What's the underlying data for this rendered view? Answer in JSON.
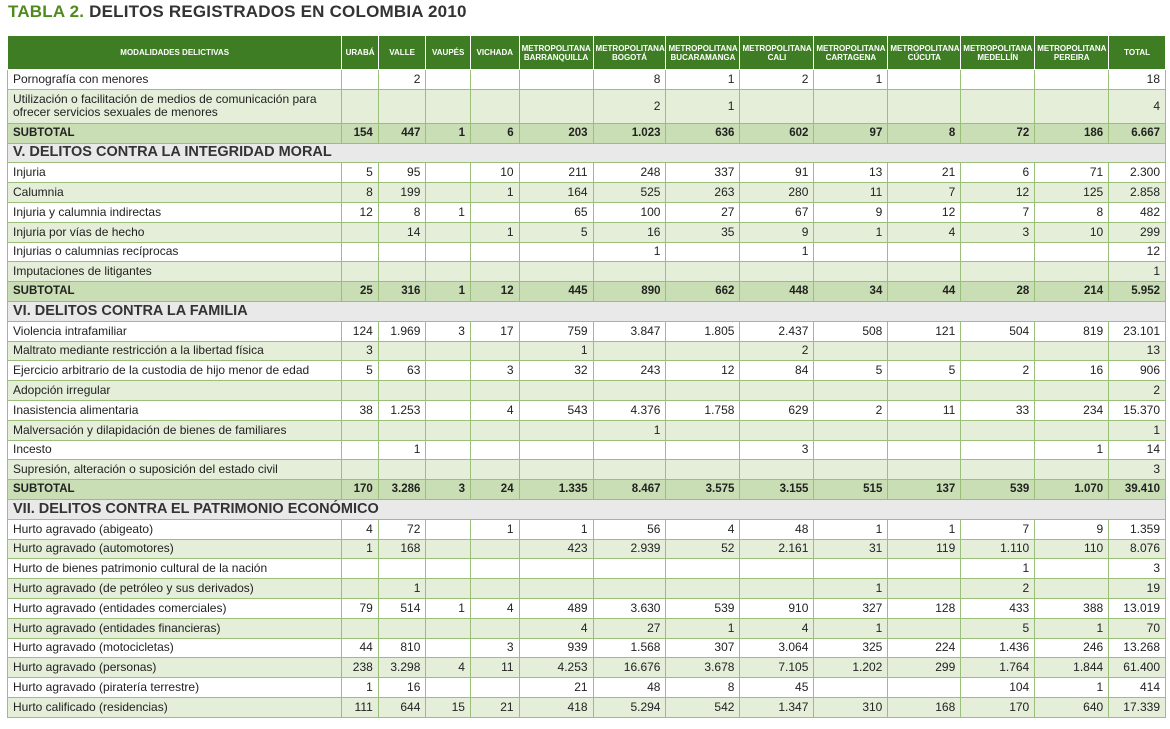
{
  "title": {
    "prefix": "TABLA 2.",
    "text": "DELITOS REGISTRADOS EN COLOMBIA 2010"
  },
  "columns": [
    "MODALIDADES DELICTIVAS",
    "URABÁ",
    "VALLE",
    "VAUPÉS",
    "VICHADA",
    "METROPOLITANA BARRANQUILLA",
    "METROPOLITANA BOGOTÁ",
    "METROPOLITANA BUCARAMANGA",
    "METROPOLITANA CALI",
    "METROPOLITANA CARTAGENA",
    "METROPOLITANA CÚCUTA",
    "METROPOLITANA MEDELLÍN",
    "METROPOLITANA PEREIRA",
    "TOTAL"
  ],
  "rows": [
    {
      "type": "data",
      "cells": [
        "Pornografía con menores",
        "",
        "2",
        "",
        "",
        "",
        "8",
        "1",
        "2",
        "1",
        "",
        "",
        "",
        "18"
      ]
    },
    {
      "type": "data",
      "tall": true,
      "cells": [
        "Utilización o facilitación de medios de comunicación para ofrecer servicios sexuales de menores",
        "",
        "",
        "",
        "",
        "",
        "2",
        "1",
        "",
        "",
        "",
        "",
        "",
        "4"
      ]
    },
    {
      "type": "subtotal",
      "cells": [
        "SUBTOTAL",
        "154",
        "447",
        "1",
        "6",
        "203",
        "1.023",
        "636",
        "602",
        "97",
        "8",
        "72",
        "186",
        "6.667"
      ]
    },
    {
      "type": "section",
      "label": "V. DELITOS CONTRA LA INTEGRIDAD MORAL"
    },
    {
      "type": "data",
      "cells": [
        "Injuria",
        "5",
        "95",
        "",
        "10",
        "211",
        "248",
        "337",
        "91",
        "13",
        "21",
        "6",
        "71",
        "2.300"
      ]
    },
    {
      "type": "data",
      "cells": [
        "Calumnia",
        "8",
        "199",
        "",
        "1",
        "164",
        "525",
        "263",
        "280",
        "11",
        "7",
        "12",
        "125",
        "2.858"
      ]
    },
    {
      "type": "data",
      "cells": [
        "Injuria y calumnia indirectas",
        "12",
        "8",
        "1",
        "",
        "65",
        "100",
        "27",
        "67",
        "9",
        "12",
        "7",
        "8",
        "482"
      ]
    },
    {
      "type": "data",
      "cells": [
        "Injuria por vías de hecho",
        "",
        "14",
        "",
        "1",
        "5",
        "16",
        "35",
        "9",
        "1",
        "4",
        "3",
        "10",
        "299"
      ]
    },
    {
      "type": "data",
      "cells": [
        "Injurias o calumnias recíprocas",
        "",
        "",
        "",
        "",
        "",
        "1",
        "",
        "1",
        "",
        "",
        "",
        "",
        "12"
      ]
    },
    {
      "type": "data",
      "cells": [
        "Imputaciones de litigantes",
        "",
        "",
        "",
        "",
        "",
        "",
        "",
        "",
        "",
        "",
        "",
        "",
        "1"
      ]
    },
    {
      "type": "subtotal",
      "cells": [
        "SUBTOTAL",
        "25",
        "316",
        "1",
        "12",
        "445",
        "890",
        "662",
        "448",
        "34",
        "44",
        "28",
        "214",
        "5.952"
      ]
    },
    {
      "type": "section",
      "label": "VI. DELITOS CONTRA LA FAMILIA"
    },
    {
      "type": "data",
      "cells": [
        "Violencia intrafamiliar",
        "124",
        "1.969",
        "3",
        "17",
        "759",
        "3.847",
        "1.805",
        "2.437",
        "508",
        "121",
        "504",
        "819",
        "23.101"
      ]
    },
    {
      "type": "data",
      "cells": [
        "Maltrato mediante restricción a la libertad física",
        "3",
        "",
        "",
        "",
        "1",
        "",
        "",
        "2",
        "",
        "",
        "",
        "",
        "13"
      ]
    },
    {
      "type": "data",
      "cells": [
        "Ejercicio arbitrario de la custodia de hijo menor de edad",
        "5",
        "63",
        "",
        "3",
        "32",
        "243",
        "12",
        "84",
        "5",
        "5",
        "2",
        "16",
        "906"
      ]
    },
    {
      "type": "data",
      "cells": [
        "Adopción irregular",
        "",
        "",
        "",
        "",
        "",
        "",
        "",
        "",
        "",
        "",
        "",
        "",
        "2"
      ]
    },
    {
      "type": "data",
      "cells": [
        "Inasistencia alimentaria",
        "38",
        "1.253",
        "",
        "4",
        "543",
        "4.376",
        "1.758",
        "629",
        "2",
        "11",
        "33",
        "234",
        "15.370"
      ]
    },
    {
      "type": "data",
      "cells": [
        "Malversación y dilapidación de bienes de familiares",
        "",
        "",
        "",
        "",
        "",
        "1",
        "",
        "",
        "",
        "",
        "",
        "",
        "1"
      ]
    },
    {
      "type": "data",
      "cells": [
        "Incesto",
        "",
        "1",
        "",
        "",
        "",
        "",
        "",
        "3",
        "",
        "",
        "",
        "1",
        "14"
      ]
    },
    {
      "type": "data",
      "cells": [
        "Supresión, alteración o suposición del estado civil",
        "",
        "",
        "",
        "",
        "",
        "",
        "",
        "",
        "",
        "",
        "",
        "",
        "3"
      ]
    },
    {
      "type": "subtotal",
      "cells": [
        "SUBTOTAL",
        "170",
        "3.286",
        "3",
        "24",
        "1.335",
        "8.467",
        "3.575",
        "3.155",
        "515",
        "137",
        "539",
        "1.070",
        "39.410"
      ]
    },
    {
      "type": "section",
      "label": "VII. DELITOS CONTRA EL PATRIMONIO ECONÓMICO"
    },
    {
      "type": "data",
      "cells": [
        "Hurto agravado (abigeato)",
        "4",
        "72",
        "",
        "1",
        "1",
        "56",
        "4",
        "48",
        "1",
        "1",
        "7",
        "9",
        "1.359"
      ]
    },
    {
      "type": "data",
      "cells": [
        "Hurto agravado (automotores)",
        "1",
        "168",
        "",
        "",
        "423",
        "2.939",
        "52",
        "2.161",
        "31",
        "119",
        "1.110",
        "110",
        "8.076"
      ]
    },
    {
      "type": "data",
      "cells": [
        "Hurto de bienes patrimonio cultural de la nación",
        "",
        "",
        "",
        "",
        "",
        "",
        "",
        "",
        "",
        "",
        "1",
        "",
        "3"
      ]
    },
    {
      "type": "data",
      "cells": [
        "Hurto agravado (de petróleo y sus derivados)",
        "",
        "1",
        "",
        "",
        "",
        "",
        "",
        "",
        "1",
        "",
        "2",
        "",
        "19"
      ]
    },
    {
      "type": "data",
      "cells": [
        "Hurto agravado (entidades comerciales)",
        "79",
        "514",
        "1",
        "4",
        "489",
        "3.630",
        "539",
        "910",
        "327",
        "128",
        "433",
        "388",
        "13.019"
      ]
    },
    {
      "type": "data",
      "cells": [
        "Hurto agravado (entidades financieras)",
        "",
        "",
        "",
        "",
        "4",
        "27",
        "1",
        "4",
        "1",
        "",
        "5",
        "1",
        "70"
      ]
    },
    {
      "type": "data",
      "cells": [
        "Hurto agravado (motocicletas)",
        "44",
        "810",
        "",
        "3",
        "939",
        "1.568",
        "307",
        "3.064",
        "325",
        "224",
        "1.436",
        "246",
        "13.268"
      ]
    },
    {
      "type": "data",
      "cells": [
        "Hurto agravado (personas)",
        "238",
        "3.298",
        "4",
        "11",
        "4.253",
        "16.676",
        "3.678",
        "7.105",
        "1.202",
        "299",
        "1.764",
        "1.844",
        "61.400"
      ]
    },
    {
      "type": "data",
      "cells": [
        "Hurto agravado (piratería terrestre)",
        "1",
        "16",
        "",
        "",
        "21",
        "48",
        "8",
        "45",
        "",
        "",
        "104",
        "1",
        "414"
      ]
    },
    {
      "type": "data",
      "cells": [
        "Hurto calificado (residencias)",
        "111",
        "644",
        "15",
        "21",
        "418",
        "5.294",
        "542",
        "1.347",
        "310",
        "168",
        "170",
        "640",
        "17.339"
      ]
    }
  ]
}
